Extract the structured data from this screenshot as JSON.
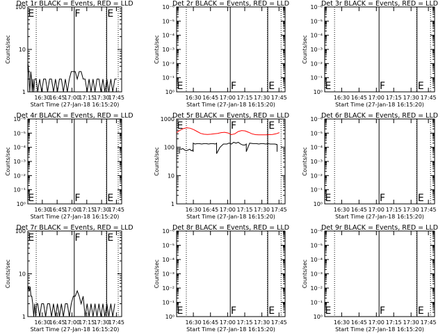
{
  "chart_data": [
    {
      "type": "line",
      "title": "Det 1r BLACK = Events, RED = LLD",
      "xlabel": "Start Time (27-Jan-18 16:15:20)",
      "ylabel": "Counts/sec",
      "yscale": "log",
      "ylim": [
        1,
        100
      ],
      "ytick_labels": [
        "1",
        "10",
        "100"
      ],
      "xtick_labels": [
        "16:30",
        "16:45",
        "17:00",
        "17:15",
        "17:30",
        "17:45"
      ],
      "markers": [
        "E",
        "F",
        "E"
      ],
      "colors": {
        "events": "#000000",
        "lld": "#ff0000"
      },
      "series": [
        {
          "color": "#000000",
          "x": [
            0.0,
            1.0,
            2.0,
            3.0,
            3.8,
            4.5,
            5.2,
            6.0,
            7.0,
            8.5,
            10.0,
            12.0,
            14.0,
            16.0,
            18.0,
            20.0,
            22.0,
            24.0,
            26.0,
            28.0,
            30.0,
            32.0,
            34.0,
            36.0,
            38.0,
            40.0,
            42.0,
            44.0,
            46.0,
            48.0,
            50.0,
            52.0,
            54.0,
            56.0,
            58.0,
            60.0,
            62.0,
            64.0,
            66.0,
            68.0,
            70.0,
            72.0,
            74.0,
            76.0,
            78.0,
            80.0,
            82.0,
            84.0,
            86.0,
            88.0,
            90.0
          ],
          "y": [
            5.0,
            3.0,
            1.0,
            3.0,
            2.0,
            1.0,
            2.0,
            1.0,
            2.0,
            2.0,
            1.0,
            2.0,
            1.0,
            2.0,
            2.0,
            1.0,
            2.0,
            2.0,
            1.0,
            2.0,
            1.0,
            2.0,
            2.0,
            1.0,
            2.0,
            1.0,
            2.0,
            3.0,
            3.0,
            3.0,
            2.0,
            3.0,
            3.0,
            2.0,
            2.0,
            1.0,
            2.0,
            1.0,
            2.0,
            1.0,
            2.0,
            2.0,
            1.0,
            2.0,
            1.0,
            2.0,
            1.0,
            2.0,
            1.0,
            2.0,
            2.0
          ]
        }
      ]
    },
    {
      "type": "line",
      "title": "Det 2r BLACK = Events, RED = LLD",
      "xlabel": "Start Time (27-Jan-18 16:15:20)",
      "ylabel": "Counts/sec",
      "yscale": "log",
      "ylim": [
        1,
        1000000
      ],
      "ytick_labels": [
        "10⁰",
        "10⁻¹",
        "10⁻²",
        "10⁻³",
        "10⁻⁴",
        "10⁻⁵",
        "10⁻⁶"
      ],
      "xtick_labels": [
        "16:30",
        "16:45",
        "17:00",
        "17:15",
        "17:30",
        "17:45"
      ],
      "markers": [
        "E",
        "F",
        "E"
      ],
      "series": []
    },
    {
      "type": "line",
      "title": "Det 3r BLACK = Events, RED = LLD",
      "xlabel": "Start Time (27-Jan-18 16:15:20)",
      "ylabel": "Counts/sec",
      "yscale": "log",
      "ylim": [
        1,
        1000000
      ],
      "ytick_labels": [
        "10⁰",
        "10⁻¹",
        "10⁻²",
        "10⁻³",
        "10⁻⁴",
        "10⁻⁵",
        "10⁻⁶"
      ],
      "xtick_labels": [
        "16:30",
        "16:45",
        "17:00",
        "17:15",
        "17:30",
        "17:45"
      ],
      "markers": [
        "E",
        "F",
        "E"
      ],
      "series": []
    },
    {
      "type": "line",
      "title": "Det 4r BLACK = Events, RED = LLD",
      "xlabel": "Start Time (27-Jan-18 16:15:20)",
      "ylabel": "Counts/sec",
      "yscale": "log",
      "ylim": [
        1,
        1000000
      ],
      "ytick_labels": [
        "10⁰",
        "10⁻¹",
        "10⁻²",
        "10⁻³",
        "10⁻⁴",
        "10⁻⁵",
        "10⁻⁶"
      ],
      "xtick_labels": [
        "16:30",
        "16:45",
        "17:00",
        "17:15",
        "17:30",
        "17:45"
      ],
      "markers": [
        "E",
        "F",
        "E"
      ],
      "series": []
    },
    {
      "type": "line",
      "title": "Det 5r BLACK = Events, RED = LLD",
      "xlabel": "Start Time (27-Jan-18 16:15:20)",
      "ylabel": "Counts/sec",
      "yscale": "log",
      "ylim": [
        1,
        1000
      ],
      "ytick_labels": [
        "1",
        "10",
        "100",
        "1000"
      ],
      "xtick_labels": [
        "16:30",
        "16:45",
        "17:00",
        "17:15",
        "17:30",
        "17:45"
      ],
      "markers": [
        "E",
        "F",
        "E"
      ],
      "colors": {
        "events": "#000000",
        "lld": "#ff0000"
      },
      "series": [
        {
          "color": "#ff0000",
          "x": [
            0,
            3,
            6,
            9,
            12,
            15,
            18,
            21,
            24,
            27,
            30,
            33,
            36,
            39,
            42,
            45,
            48,
            51,
            54,
            57,
            60,
            63,
            66,
            69,
            72,
            75,
            78,
            81,
            84,
            87,
            90
          ],
          "y": [
            330,
            400,
            460,
            490,
            470,
            420,
            360,
            310,
            290,
            285,
            290,
            300,
            310,
            330,
            340,
            320,
            280,
            300,
            360,
            390,
            380,
            340,
            300,
            280,
            275,
            275,
            275,
            280,
            285,
            300,
            330
          ]
        },
        {
          "color": "#000000",
          "x": [
            2.5,
            2.5,
            4.0,
            5.5,
            7.0,
            8.5,
            10.0,
            11.5,
            13.0,
            14.0,
            14.5,
            14.5,
            16.0,
            18.0,
            20.0,
            22.0,
            24.0,
            26.0,
            28.0,
            30.0,
            32.0,
            34.0,
            35.0,
            35.0,
            38.0,
            41.0,
            44.0,
            46.0,
            48.0,
            50.0,
            52.0,
            54.0,
            56.0,
            58.0,
            60.0,
            61.0,
            61.0,
            64.0,
            67.0,
            70.0,
            72.0,
            74.0,
            76.0,
            78.0,
            80.0,
            82.0,
            84.0,
            86.0,
            88.0,
            88.0
          ],
          "y": [
            60,
            90,
            85,
            90,
            80,
            75,
            80,
            85,
            75,
            80,
            70,
            140,
            130,
            135,
            135,
            130,
            135,
            135,
            130,
            135,
            135,
            130,
            140,
            60,
            100,
            130,
            130,
            140,
            130,
            150,
            140,
            150,
            130,
            120,
            120,
            130,
            70,
            140,
            135,
            135,
            130,
            135,
            135,
            130,
            135,
            130,
            130,
            130,
            125,
            70
          ]
        }
      ]
    },
    {
      "type": "line",
      "title": "Det 6r BLACK = Events, RED = LLD",
      "xlabel": "Start Time (27-Jan-18 16:15:20)",
      "ylabel": "Counts/sec",
      "yscale": "log",
      "ylim": [
        1,
        1000000
      ],
      "ytick_labels": [
        "10⁰",
        "10⁻¹",
        "10⁻²",
        "10⁻³",
        "10⁻⁴",
        "10⁻⁵",
        "10⁻⁶"
      ],
      "xtick_labels": [
        "16:30",
        "16:45",
        "17:00",
        "17:15",
        "17:30",
        "17:45"
      ],
      "markers": [
        "E",
        "F",
        "E"
      ],
      "series": []
    },
    {
      "type": "line",
      "title": "Det 7r BLACK = Events, RED = LLD",
      "xlabel": "Start Time (27-Jan-18 16:15:20)",
      "ylabel": "Counts/sec",
      "yscale": "log",
      "ylim": [
        1,
        100
      ],
      "ytick_labels": [
        "1",
        "10",
        "100"
      ],
      "xtick_labels": [
        "16:30",
        "16:45",
        "17:00",
        "17:15",
        "17:30",
        "17:45"
      ],
      "markers": [
        "E",
        "F",
        "E"
      ],
      "colors": {
        "events": "#000000",
        "lld": "#ff0000"
      },
      "series": [
        {
          "color": "#000000",
          "x": [
            0.0,
            0.8,
            1.6,
            2.4,
            3.2,
            4.0,
            5.0,
            6.0,
            7.0,
            8.0,
            9.0,
            10.0,
            12.0,
            14.0,
            16.0,
            18.0,
            20.0,
            22.0,
            24.0,
            26.0,
            28.0,
            30.0,
            32.0,
            34.0,
            36.0,
            38.0,
            40.0,
            42.0,
            44.0,
            46.0,
            48.0,
            50.0,
            52.0,
            54.0,
            56.0,
            58.0,
            60.0,
            62.0,
            64.0,
            66.0,
            68.0,
            70.0,
            72.0,
            74.0,
            76.0,
            78.0,
            80.0,
            82.0,
            84.0,
            86.0,
            88.0
          ],
          "y": [
            4.0,
            5.0,
            4.0,
            5.0,
            3.0,
            3.0,
            2.0,
            1.0,
            2.0,
            1.0,
            2.0,
            2.0,
            1.0,
            2.0,
            2.0,
            1.0,
            2.0,
            2.0,
            1.0,
            2.0,
            1.0,
            2.0,
            1.0,
            2.0,
            1.0,
            2.0,
            2.0,
            1.0,
            2.0,
            3.0,
            3.0,
            4.0,
            3.0,
            2.0,
            3.0,
            1.0,
            2.0,
            1.0,
            2.0,
            1.0,
            2.0,
            1.0,
            2.0,
            1.0,
            2.0,
            1.0,
            2.0,
            1.0,
            2.0,
            1.0,
            2.0
          ]
        }
      ]
    },
    {
      "type": "line",
      "title": "Det 8r BLACK = Events, RED = LLD",
      "xlabel": "Start Time (27-Jan-18 16:15:20)",
      "ylabel": "Counts/sec",
      "yscale": "log",
      "ylim": [
        1,
        1000000
      ],
      "ytick_labels": [
        "10⁰",
        "10⁻¹",
        "10⁻²",
        "10⁻³",
        "10⁻⁴",
        "10⁻⁵",
        "10⁻⁶"
      ],
      "xtick_labels": [
        "16:30",
        "16:45",
        "17:00",
        "17:15",
        "17:30",
        "17:45"
      ],
      "markers": [
        "E",
        "F",
        "E"
      ],
      "series": []
    },
    {
      "type": "line",
      "title": "Det 9r BLACK = Events, RED = LLD",
      "xlabel": "Start Time (27-Jan-18 16:15:20)",
      "ylabel": "Counts/sec",
      "yscale": "log",
      "ylim": [
        1,
        1000000
      ],
      "ytick_labels": [
        "10⁰",
        "10⁻¹",
        "10⁻²",
        "10⁻³",
        "10⁻⁴",
        "10⁻⁵",
        "10⁻⁶"
      ],
      "xtick_labels": [
        "16:30",
        "16:45",
        "17:00",
        "17:15",
        "17:30",
        "17:45"
      ],
      "markers": [
        "E",
        "F",
        "E"
      ],
      "series": []
    }
  ]
}
